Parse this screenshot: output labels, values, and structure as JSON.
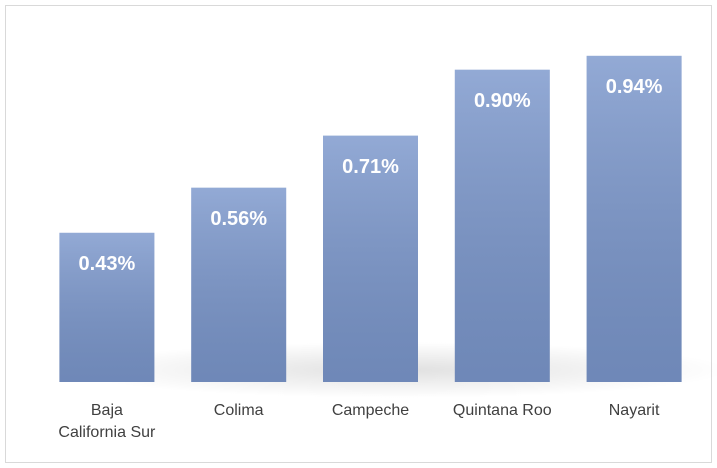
{
  "chart_data": {
    "type": "bar",
    "categories": [
      "Baja California Sur",
      "Colima",
      "Campeche",
      "Quintana Roo",
      "Nayarit"
    ],
    "values": [
      0.43,
      0.56,
      0.71,
      0.9,
      0.94
    ],
    "value_labels": [
      "0.43%",
      "0.56%",
      "0.71%",
      "0.90%",
      "0.94%"
    ],
    "color": "#7b97cc",
    "ylim": [
      0,
      1
    ]
  }
}
